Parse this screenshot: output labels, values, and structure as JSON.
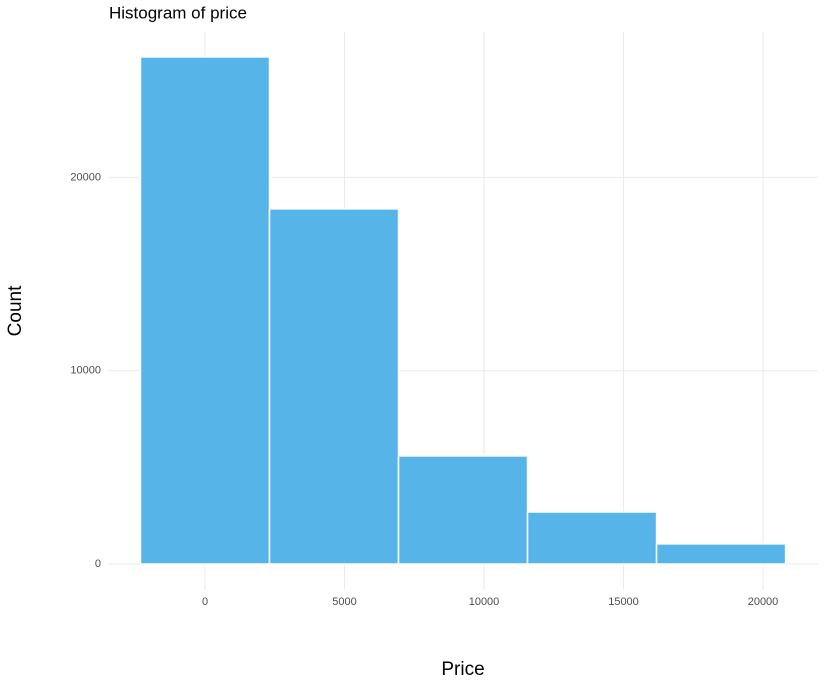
{
  "chart_data": {
    "type": "histogram",
    "title": "Histogram of price",
    "x_label": "Price",
    "y_label": "Count",
    "bins": [
      -2312.125,
      2312.125,
      6936.375,
      11560.625,
      16184.875,
      20809.125
    ],
    "values": [
      26230,
      18370,
      5590,
      2690,
      1040
    ],
    "color": "#56B4E9",
    "xlim": [
      -3477,
      21971
    ],
    "xticks": [
      0,
      5000,
      10000,
      15000,
      20000
    ],
    "ylim": [
      -1345,
      27520
    ],
    "yticks": [
      0,
      10000,
      20000
    ],
    "grid": true
  }
}
